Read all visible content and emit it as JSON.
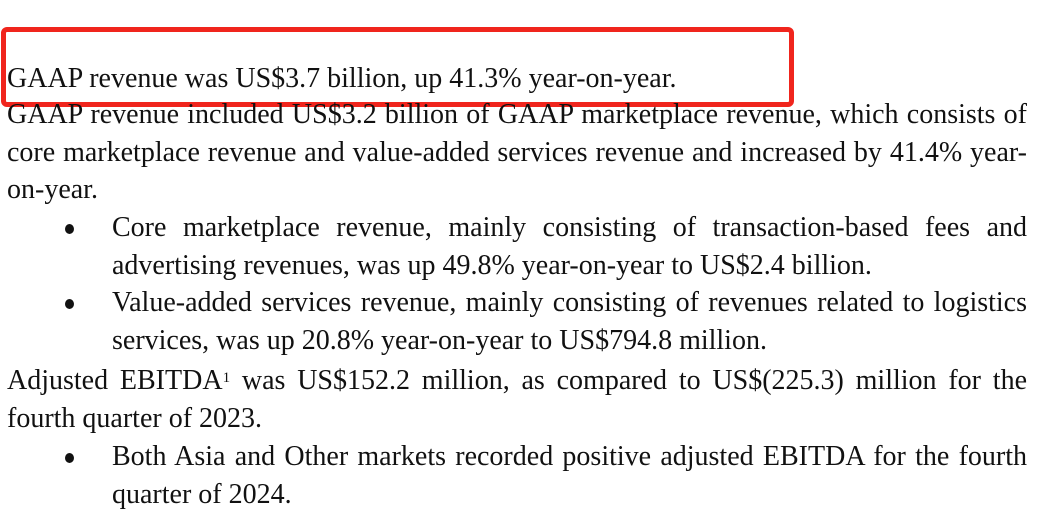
{
  "highlight": {
    "color": "#f0251d",
    "target": "headline"
  },
  "headline": "GAAP revenue was US$3.7 billion, up 41.3% year-on-year.",
  "marketplace": {
    "text": "GAAP revenue included US$3.2 billion of GAAP marketplace revenue, which consists of core marketplace revenue and value-added services revenue and increased by 41.4% year-on-year.",
    "bullets": [
      {
        "text": "Core marketplace revenue, mainly consisting of transaction-based fees and advertising revenues, was up 49.8% year-on-year to US$2.4 billion."
      },
      {
        "text": "Value-added services revenue, mainly consisting of revenues related to logistics services, was up 20.8% year-on-year to US$794.8 million."
      }
    ]
  },
  "ebitda": {
    "label": "Adjusted EBITDA",
    "footnote": "1",
    "text": " was US$152.2 million, as compared to US$(225.3) million for the fourth quarter of 2023.",
    "bullets": [
      {
        "text": "Both Asia and Other markets recorded positive adjusted EBITDA for the fourth quarter of 2024."
      }
    ]
  }
}
